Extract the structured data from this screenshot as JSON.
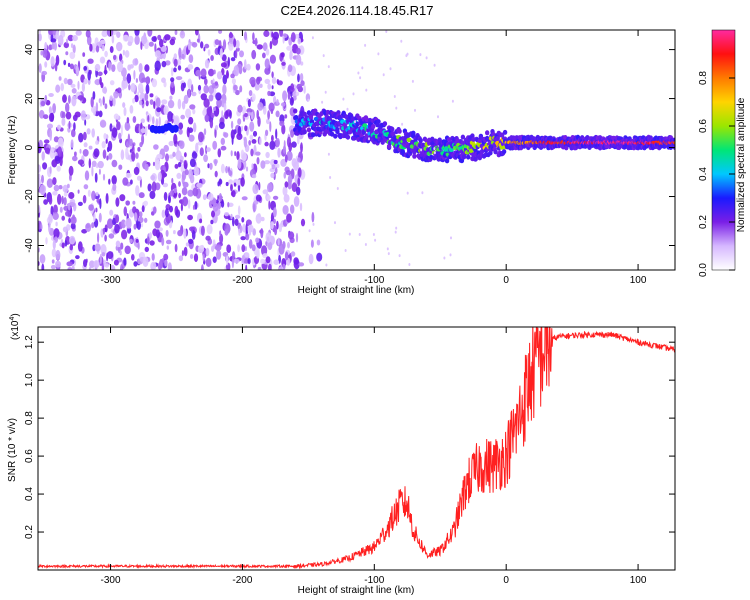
{
  "title": "C2E4.2026.114.18.45.R17",
  "chart_data": [
    {
      "type": "heatmap",
      "xlabel": "Height of straight line (km)",
      "ylabel": "Frequency (Hz)",
      "xlim": [
        -355,
        128
      ],
      "ylim": [
        -50,
        48
      ],
      "xticks": [
        -300,
        -200,
        -100,
        0,
        100
      ],
      "yticks": [
        -40,
        -20,
        0,
        20,
        40
      ],
      "colorbar": {
        "label": "Normalized spectral amplitude",
        "range": [
          0,
          1
        ],
        "ticks": [
          "0.0",
          "0.2",
          "0.4",
          "0.6",
          "0.8"
        ],
        "tick_values": [
          0.0,
          0.2,
          0.4,
          0.6,
          0.8
        ],
        "colors": [
          "#ffffff",
          "#d6b8ff",
          "#7a1fe6",
          "#1a1aff",
          "#00c8ff",
          "#00e676",
          "#9be600",
          "#ffd400",
          "#ff7a00",
          "#ff1010",
          "#ff2aa0"
        ]
      },
      "signal_track": {
        "x": [
          -160,
          -140,
          -120,
          -100,
          -85,
          -70,
          -55,
          -40,
          -25,
          -10,
          0,
          20,
          40,
          60,
          80,
          100,
          128
        ],
        "y": [
          10,
          10,
          9,
          7,
          3,
          1,
          -1,
          -1,
          0,
          2,
          2,
          2,
          2,
          2,
          2,
          2,
          2
        ],
        "amplitude": [
          0.35,
          0.4,
          0.4,
          0.45,
          0.5,
          0.55,
          0.55,
          0.5,
          0.6,
          0.65,
          0.7,
          0.85,
          0.9,
          0.95,
          1.0,
          0.95,
          0.9
        ]
      },
      "noise_region_x": [
        -355,
        -155
      ]
    },
    {
      "type": "line",
      "xlabel": "Height of straight line (km)",
      "ylabel": "SNR (10 * v/v)",
      "yscale_label": "(x10",
      "yscale_exp": "4",
      "xlim": [
        -355,
        128
      ],
      "ylim": [
        0,
        1.28
      ],
      "xticks": [
        -300,
        -200,
        -100,
        0,
        100
      ],
      "yticks": [
        0.2,
        0.4,
        0.6,
        0.8,
        1.0,
        1.2
      ],
      "ytick_labels": [
        "0.2",
        "0.4",
        "0.6",
        "0.8",
        "1.0",
        "1.2"
      ],
      "color": "#ff2020",
      "series": [
        {
          "name": "SNR",
          "x": [
            -355,
            -300,
            -250,
            -200,
            -160,
            -140,
            -120,
            -100,
            -90,
            -80,
            -75,
            -70,
            -60,
            -50,
            -40,
            -30,
            -20,
            -10,
            0,
            10,
            20,
            30,
            40,
            60,
            80,
            100,
            128
          ],
          "y": [
            0.02,
            0.02,
            0.02,
            0.02,
            0.02,
            0.03,
            0.06,
            0.12,
            0.22,
            0.35,
            0.35,
            0.2,
            0.08,
            0.1,
            0.2,
            0.45,
            0.55,
            0.55,
            0.6,
            0.8,
            1.05,
            1.2,
            1.23,
            1.24,
            1.24,
            1.2,
            1.16
          ]
        }
      ]
    }
  ]
}
